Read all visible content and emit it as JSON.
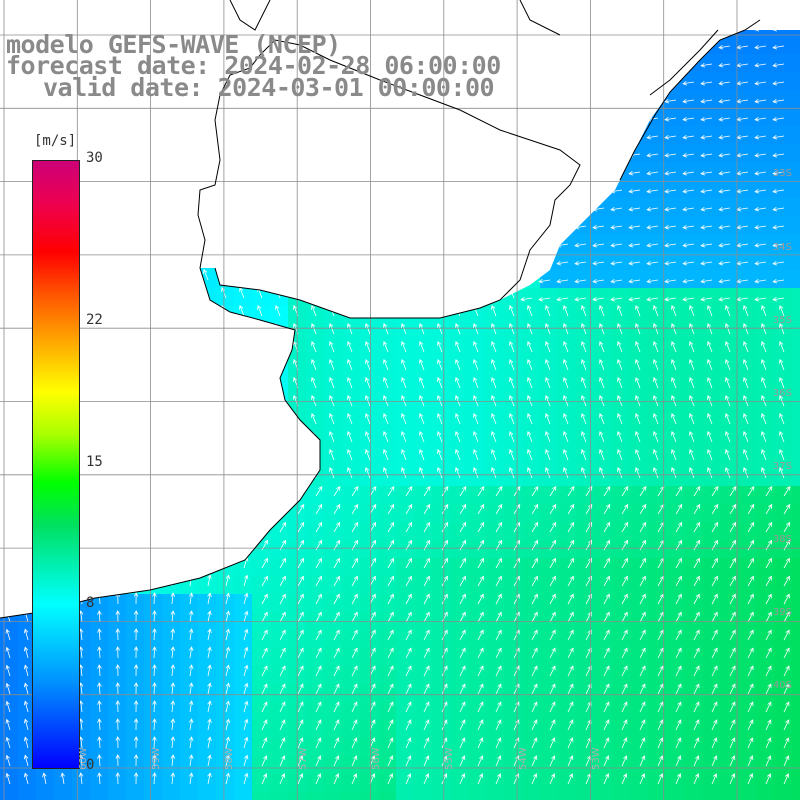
{
  "title": {
    "line1": "modelo GEFS-WAVE (NCEP)",
    "line2": "forecast date: 2024-02-28 06:00:00",
    "line3": "valid date: 2024-03-01 00:00:00"
  },
  "legend": {
    "units": "[m/s]",
    "ticks": [
      {
        "label": "30",
        "value": 30
      },
      {
        "label": "22",
        "value": 22
      },
      {
        "label": "15",
        "value": 15
      },
      {
        "label": "8",
        "value": 8
      },
      {
        "label": "0",
        "value": 0
      }
    ],
    "min": 0,
    "max": 30
  },
  "lat_labels": [
    "33S",
    "34S",
    "35S",
    "36S",
    "37S",
    "38S",
    "39S",
    "40S"
  ],
  "lon_labels": [
    "60W",
    "59W",
    "58W",
    "57W",
    "56W",
    "55W",
    "54W",
    "53W"
  ],
  "colors": {
    "land": "#ffffff",
    "grid": "#8c8c8c",
    "coast": "#000000",
    "arrow": "#ffffff",
    "title": "#8a8a8a"
  }
}
